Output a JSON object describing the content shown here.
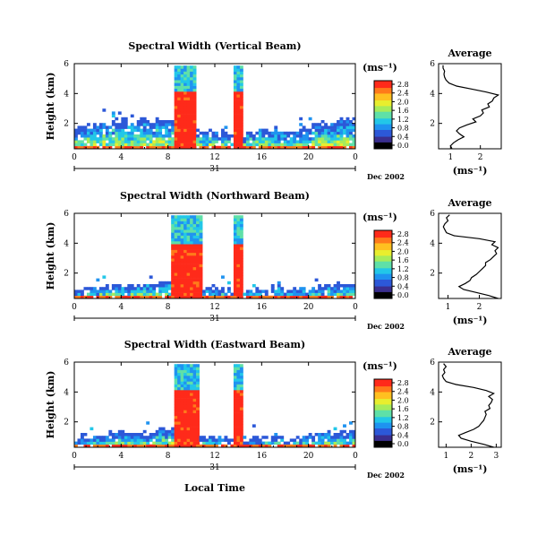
{
  "figure": {
    "date_label": "Dec 2002",
    "day_label": "31",
    "xlabel_bottom": "Local Time",
    "height_label": "Height (km)",
    "unit_label": "(ms⁻¹)",
    "average_title": "Average",
    "average_unit": "(ms⁻¹)"
  },
  "colors": {
    "scale": [
      "#000000",
      "#3b2e8f",
      "#2c58d8",
      "#1f93f0",
      "#22c7e8",
      "#5fe0a8",
      "#a6ec5a",
      "#e8ee2e",
      "#ffc020",
      "#ff7a1a",
      "#ff2a1a"
    ],
    "hot": "#ff2a1a"
  },
  "chart_data": [
    {
      "type": "heatmap",
      "title": "Spectral Width (Vertical Beam)",
      "xlabel": "",
      "ylabel": "Height (km)",
      "x_ticks": [
        "0",
        "4",
        "8",
        "12",
        "16",
        "20",
        "0"
      ],
      "y_ticks": [
        "2",
        "4",
        "6"
      ],
      "xlim": [
        0,
        24
      ],
      "ylim": [
        0.3,
        6.0
      ],
      "colorbar": {
        "label": "(ms⁻¹)",
        "ticks": [
          "0.0",
          "0.4",
          "0.8",
          "1.2",
          "1.6",
          "2.0",
          "2.4",
          "2.8"
        ],
        "range": [
          0.0,
          2.8
        ]
      },
      "hot_bands": [
        [
          8.5,
          10.5
        ],
        [
          13.6,
          14.4
        ]
      ],
      "hot_band_top_km": 4.2,
      "echo_top_km": 2.6,
      "average_profile": {
        "title": "Average",
        "xlabel": "(ms⁻¹)",
        "x_ticks": [
          "1",
          "2"
        ],
        "xlim": [
          0.6,
          2.7
        ],
        "ylim": [
          0.3,
          6.0
        ],
        "y_ticks": [
          "2",
          "4",
          "6"
        ],
        "height_km": [
          0.3,
          0.5,
          0.7,
          0.9,
          1.1,
          1.3,
          1.5,
          1.7,
          1.9,
          2.1,
          2.3,
          2.5,
          2.7,
          2.9,
          3.1,
          3.3,
          3.5,
          3.7,
          3.9,
          4.1,
          4.3,
          4.5,
          4.7,
          4.9,
          5.1,
          5.3,
          5.5,
          5.7,
          5.9
        ],
        "width_ms": [
          1.05,
          1.0,
          1.1,
          1.25,
          1.45,
          1.3,
          1.2,
          1.3,
          1.55,
          1.85,
          1.75,
          2.0,
          2.1,
          2.05,
          2.3,
          2.25,
          2.4,
          2.45,
          2.6,
          2.2,
          1.7,
          1.2,
          0.95,
          0.85,
          0.8,
          0.78,
          0.8,
          0.75,
          0.75
        ]
      }
    },
    {
      "type": "heatmap",
      "title": "Spectral Width (Northward Beam)",
      "xlabel": "",
      "ylabel": "Height (km)",
      "x_ticks": [
        "0",
        "4",
        "8",
        "12",
        "16",
        "20",
        "0"
      ],
      "y_ticks": [
        "2",
        "4",
        "6"
      ],
      "xlim": [
        0,
        24
      ],
      "ylim": [
        0.3,
        6.0
      ],
      "colorbar": {
        "label": "(ms⁻¹)",
        "ticks": [
          "0.0",
          "0.4",
          "0.8",
          "1.2",
          "1.6",
          "2.0",
          "2.4",
          "2.8"
        ],
        "range": [
          0.0,
          2.8
        ]
      },
      "hot_bands": [
        [
          8.2,
          11.0
        ],
        [
          13.6,
          14.4
        ]
      ],
      "hot_band_top_km": 4.1,
      "echo_top_km": 1.5,
      "average_profile": {
        "title": "Average",
        "xlabel": "(ms⁻¹)",
        "x_ticks": [
          "1",
          "2"
        ],
        "xlim": [
          0.7,
          2.7
        ],
        "ylim": [
          0.3,
          6.0
        ],
        "y_ticks": [
          "2",
          "4",
          "6"
        ],
        "height_km": [
          0.3,
          0.5,
          0.7,
          0.9,
          1.1,
          1.3,
          1.5,
          1.7,
          1.9,
          2.1,
          2.3,
          2.5,
          2.7,
          2.9,
          3.1,
          3.3,
          3.5,
          3.7,
          3.9,
          4.1,
          4.3,
          4.5,
          4.7,
          4.9,
          5.1,
          5.3,
          5.5,
          5.7,
          5.9
        ],
        "width_ms": [
          2.6,
          2.3,
          1.9,
          1.5,
          1.35,
          1.55,
          1.7,
          1.75,
          1.9,
          2.0,
          2.1,
          2.2,
          2.2,
          2.35,
          2.45,
          2.55,
          2.5,
          2.6,
          2.4,
          2.5,
          2.0,
          1.2,
          0.95,
          0.9,
          0.85,
          0.9,
          1.0,
          0.95,
          1.05
        ]
      }
    },
    {
      "type": "heatmap",
      "title": "Spectral Width (Eastward Beam)",
      "xlabel": "Local Time",
      "ylabel": "Height (km)",
      "x_ticks": [
        "0",
        "4",
        "8",
        "12",
        "16",
        "20",
        "0"
      ],
      "y_ticks": [
        "2",
        "4",
        "6"
      ],
      "xlim": [
        0,
        24
      ],
      "ylim": [
        0.3,
        6.0
      ],
      "colorbar": {
        "label": "(ms⁻¹)",
        "ticks": [
          "0.0",
          "0.4",
          "0.8",
          "1.2",
          "1.6",
          "2.0",
          "2.4",
          "2.8"
        ],
        "range": [
          0.0,
          2.8
        ]
      },
      "hot_bands": [
        [
          8.6,
          10.6
        ],
        [
          13.6,
          14.4
        ]
      ],
      "hot_band_top_km": 4.2,
      "echo_top_km": 1.6,
      "average_profile": {
        "title": "Average",
        "xlabel": "(ms⁻¹)",
        "x_ticks": [
          "1",
          "2",
          "3"
        ],
        "xlim": [
          0.7,
          3.2
        ],
        "ylim": [
          0.3,
          6.0
        ],
        "y_ticks": [
          "2",
          "4",
          "6"
        ],
        "height_km": [
          0.3,
          0.5,
          0.7,
          0.9,
          1.1,
          1.3,
          1.5,
          1.7,
          1.9,
          2.1,
          2.3,
          2.5,
          2.7,
          2.9,
          3.1,
          3.3,
          3.5,
          3.7,
          3.9,
          4.1,
          4.3,
          4.5,
          4.7,
          4.9,
          5.1,
          5.3,
          5.5,
          5.7,
          5.9
        ],
        "width_ms": [
          2.9,
          2.5,
          2.0,
          1.6,
          1.5,
          1.8,
          2.1,
          2.3,
          2.4,
          2.5,
          2.55,
          2.6,
          2.55,
          2.75,
          2.7,
          2.8,
          2.85,
          2.7,
          2.9,
          2.6,
          2.1,
          1.4,
          1.0,
          0.9,
          0.85,
          0.95,
          0.9,
          1.0,
          0.9
        ]
      }
    }
  ]
}
